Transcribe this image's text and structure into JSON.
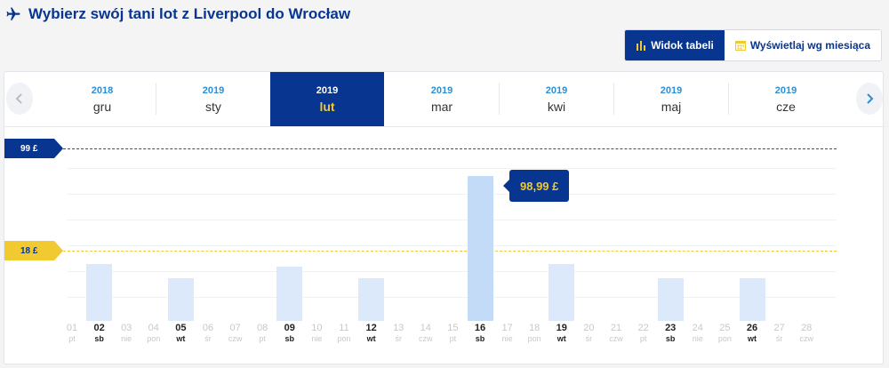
{
  "header": {
    "title": "Wybierz swój tani lot z Liverpool do Wrocław",
    "icon": "plane-icon"
  },
  "views": {
    "table_label": "Widok tabeli",
    "month_label": "Wyświetlaj wg miesiąca"
  },
  "months": [
    {
      "year": "2018",
      "month": "gru",
      "selected": false
    },
    {
      "year": "2019",
      "month": "sty",
      "selected": false
    },
    {
      "year": "2019",
      "month": "lut",
      "selected": true
    },
    {
      "year": "2019",
      "month": "mar",
      "selected": false
    },
    {
      "year": "2019",
      "month": "kwi",
      "selected": false
    },
    {
      "year": "2019",
      "month": "maj",
      "selected": false
    },
    {
      "year": "2019",
      "month": "cze",
      "selected": false
    }
  ],
  "price_max_label": "99 £",
  "price_min_label": "18 £",
  "tooltip_price": "98,99 £",
  "colors": {
    "brand": "#073590",
    "accent": "#f1c931",
    "bar": "#dbe9fb",
    "bar_selected": "#c4dbf7"
  },
  "chart_data": {
    "type": "bar",
    "currency": "£",
    "max_price": 99,
    "min_price": 18,
    "selected_day": "16",
    "days": [
      {
        "d": "01",
        "w": "pt",
        "price": null
      },
      {
        "d": "02",
        "w": "sb",
        "price": 23
      },
      {
        "d": "03",
        "w": "nie",
        "price": null
      },
      {
        "d": "04",
        "w": "pon",
        "price": null
      },
      {
        "d": "05",
        "w": "wt",
        "price": 18
      },
      {
        "d": "06",
        "w": "śr",
        "price": null
      },
      {
        "d": "07",
        "w": "czw",
        "price": null
      },
      {
        "d": "08",
        "w": "pt",
        "price": null
      },
      {
        "d": "09",
        "w": "sb",
        "price": 22
      },
      {
        "d": "10",
        "w": "nie",
        "price": null
      },
      {
        "d": "11",
        "w": "pon",
        "price": null
      },
      {
        "d": "12",
        "w": "wt",
        "price": 18
      },
      {
        "d": "13",
        "w": "śr",
        "price": null
      },
      {
        "d": "14",
        "w": "czw",
        "price": null
      },
      {
        "d": "15",
        "w": "pt",
        "price": null
      },
      {
        "d": "16",
        "w": "sb",
        "price": 98.99
      },
      {
        "d": "17",
        "w": "nie",
        "price": null
      },
      {
        "d": "18",
        "w": "pon",
        "price": null
      },
      {
        "d": "19",
        "w": "wt",
        "price": 23
      },
      {
        "d": "20",
        "w": "śr",
        "price": null
      },
      {
        "d": "21",
        "w": "czw",
        "price": null
      },
      {
        "d": "22",
        "w": "pt",
        "price": null
      },
      {
        "d": "23",
        "w": "sb",
        "price": 18
      },
      {
        "d": "24",
        "w": "nie",
        "price": null
      },
      {
        "d": "25",
        "w": "pon",
        "price": null
      },
      {
        "d": "26",
        "w": "wt",
        "price": 18
      },
      {
        "d": "27",
        "w": "śr",
        "price": null
      },
      {
        "d": "28",
        "w": "czw",
        "price": null
      }
    ]
  }
}
